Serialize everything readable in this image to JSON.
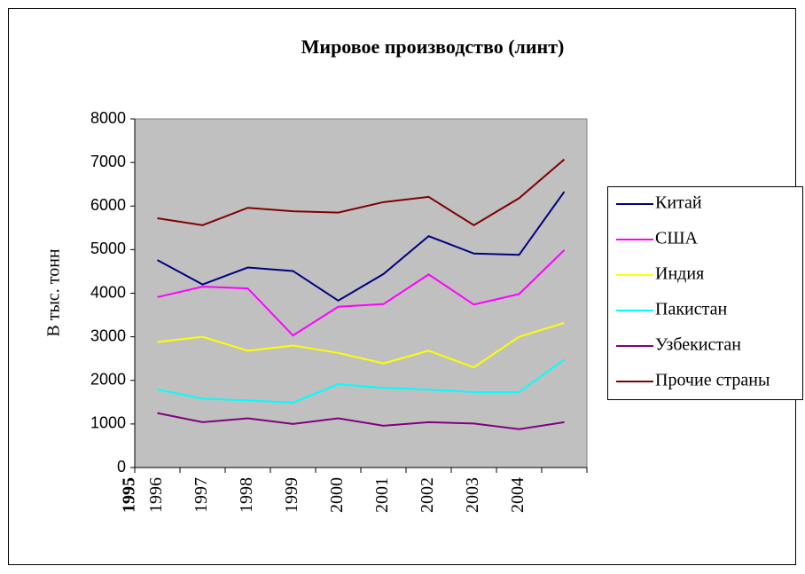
{
  "chart_data": {
    "type": "line",
    "title": "Мировое производство (линт)",
    "y_label": "В тыс. тонн",
    "x_label": "1995",
    "categories": [
      "1996",
      "1997",
      "1998",
      "1999",
      "2000",
      "2001",
      "2002",
      "2003",
      "2004",
      null
    ],
    "series": [
      {
        "name": "Китай",
        "color": "#000080",
        "values": [
          4760,
          4200,
          4590,
          4510,
          3830,
          4440,
          5310,
          4910,
          4880,
          6330
        ]
      },
      {
        "name": "США",
        "color": "#ff00ff",
        "values": [
          3910,
          4150,
          4110,
          3030,
          3690,
          3750,
          4430,
          3740,
          3980,
          4990
        ]
      },
      {
        "name": "Индия",
        "color": "#ffff00",
        "values": [
          2880,
          3000,
          2680,
          2800,
          2630,
          2390,
          2680,
          2300,
          3000,
          3320
        ]
      },
      {
        "name": "Пакистан",
        "color": "#00ffff",
        "values": [
          1790,
          1580,
          1540,
          1490,
          1910,
          1830,
          1790,
          1730,
          1730,
          2480
        ]
      },
      {
        "name": "Узбекистан",
        "color": "#800080",
        "values": [
          1250,
          1040,
          1130,
          1000,
          1130,
          960,
          1040,
          1010,
          880,
          1040
        ]
      },
      {
        "name": "Прочие страны",
        "color": "#800000",
        "values": [
          5720,
          5560,
          5960,
          5880,
          5850,
          6090,
          6210,
          5560,
          6180,
          7070
        ]
      }
    ],
    "ylim": [
      0,
      8000
    ],
    "yticks": [
      0,
      1000,
      2000,
      3000,
      4000,
      5000,
      6000,
      7000,
      8000
    ],
    "plot_background": "#c0c0c0",
    "legend": "right"
  }
}
